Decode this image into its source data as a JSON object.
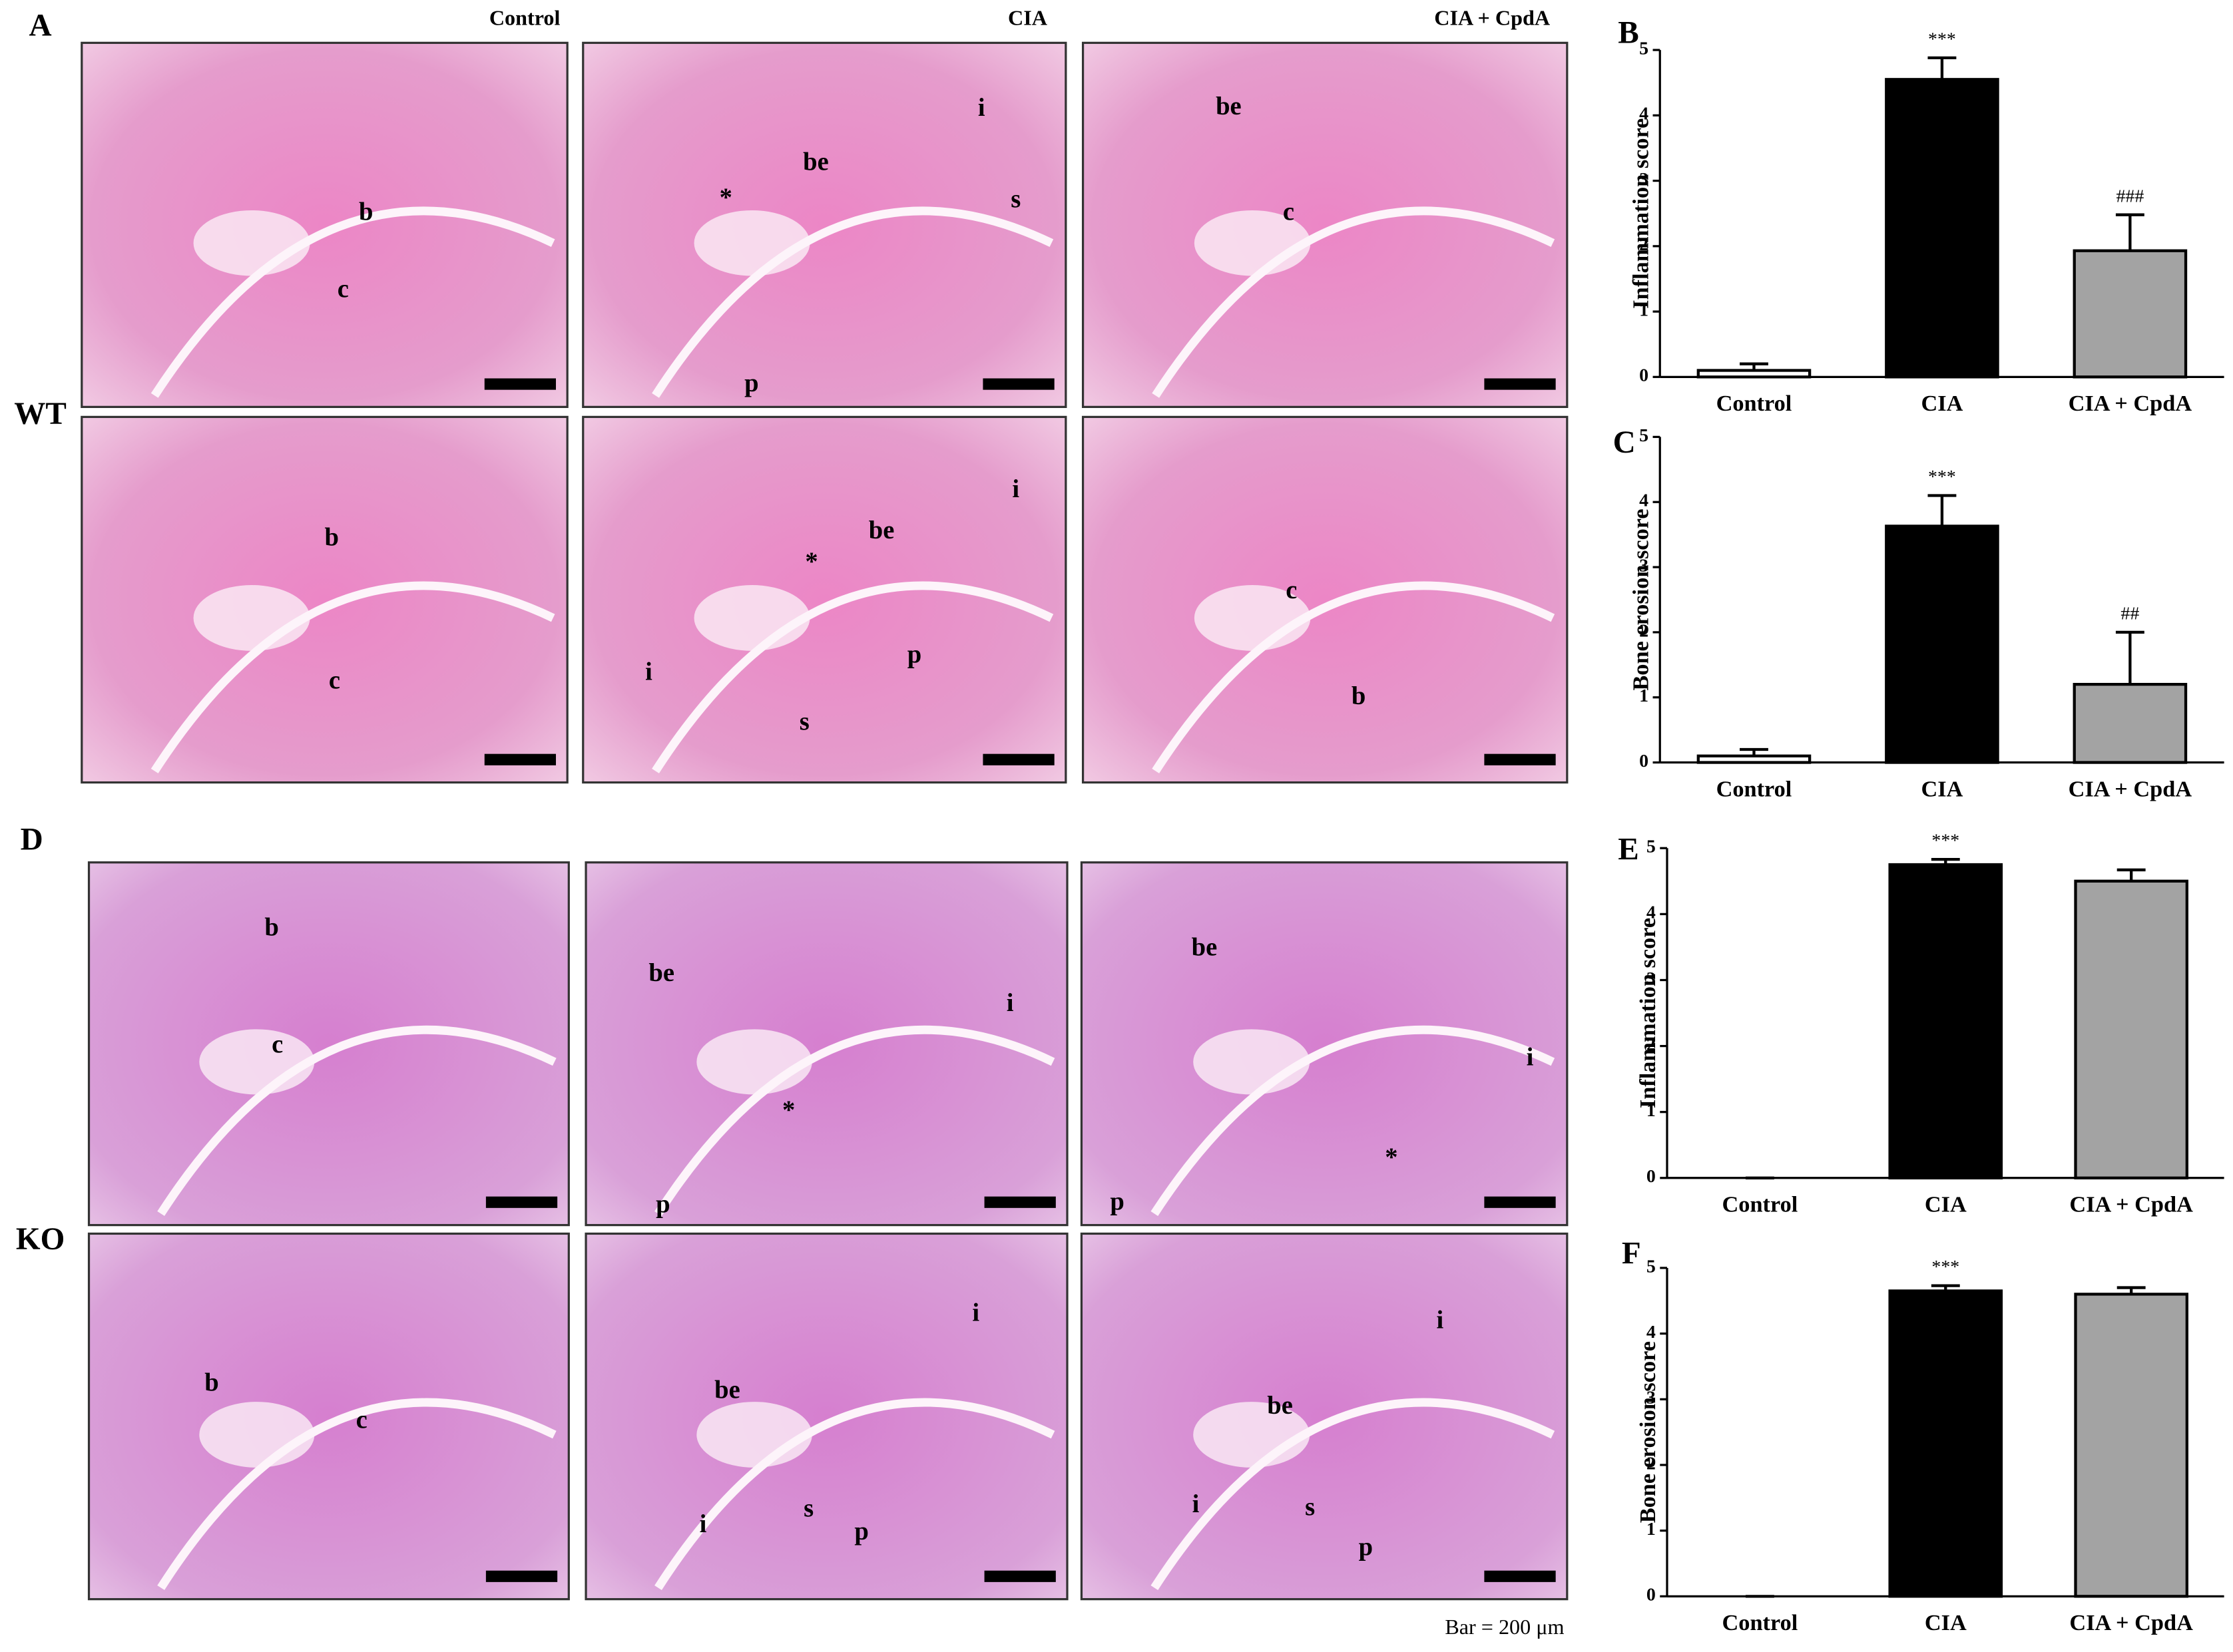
{
  "figure": {
    "panel_letters": {
      "a": "A",
      "d": "D"
    },
    "column_headers": [
      "Control",
      "CIA",
      "CIA + CpdA"
    ],
    "row_labels": {
      "wt": "WT",
      "ko": "KO"
    },
    "scale_bar_note": "Bar = 200 μm",
    "images": [
      {
        "labels": [
          "b",
          "c"
        ]
      },
      {
        "labels": [
          "be",
          "*",
          "i",
          "s",
          "p"
        ]
      },
      {
        "labels": [
          "be",
          "c"
        ]
      },
      {
        "labels": [
          "b",
          "c"
        ]
      },
      {
        "labels": [
          "be",
          "*",
          "i",
          "i",
          "p",
          "s"
        ]
      },
      {
        "labels": [
          "c",
          "b"
        ]
      },
      {
        "labels": [
          "b",
          "c"
        ]
      },
      {
        "labels": [
          "be",
          "i",
          "*",
          "p"
        ]
      },
      {
        "labels": [
          "be",
          "i",
          "*",
          "p"
        ]
      },
      {
        "labels": [
          "b",
          "c"
        ]
      },
      {
        "labels": [
          "be",
          "i",
          "i",
          "s",
          "p"
        ]
      },
      {
        "labels": [
          "be",
          "i",
          "i",
          "s",
          "p"
        ]
      }
    ]
  },
  "chart_data": [
    {
      "type": "bar",
      "panel": "B",
      "ylabel": "Inflammation score",
      "categories": [
        "Control",
        "CIA",
        "CIA + CpdA"
      ],
      "values": [
        0.1,
        4.55,
        1.93
      ],
      "errors": [
        0.1,
        0.33,
        0.55
      ],
      "significance": [
        null,
        "***",
        "###"
      ],
      "colors": [
        "#ffffff",
        "#000000",
        "#a3a3a3"
      ],
      "ylim": [
        0,
        5
      ],
      "yticks": [
        0,
        1,
        2,
        3,
        4,
        5
      ]
    },
    {
      "type": "bar",
      "panel": "C",
      "ylabel": "Bone erosion score",
      "categories": [
        "Control",
        "CIA",
        "CIA + CpdA"
      ],
      "values": [
        0.1,
        3.63,
        1.2
      ],
      "errors": [
        0.1,
        0.47,
        0.8
      ],
      "significance": [
        null,
        "***",
        "##"
      ],
      "colors": [
        "#ffffff",
        "#000000",
        "#a3a3a3"
      ],
      "ylim": [
        0,
        5
      ],
      "yticks": [
        0,
        1,
        2,
        3,
        4,
        5
      ]
    },
    {
      "type": "bar",
      "panel": "E",
      "ylabel": "Inflammation score",
      "categories": [
        "Control",
        "CIA",
        "CIA + CpdA"
      ],
      "values": [
        0,
        4.75,
        4.5
      ],
      "errors": [
        0,
        0.08,
        0.17
      ],
      "significance": [
        null,
        "***",
        null
      ],
      "colors": [
        "#ffffff",
        "#000000",
        "#a3a3a3"
      ],
      "ylim": [
        0,
        5
      ],
      "yticks": [
        0,
        1,
        2,
        3,
        4,
        5
      ]
    },
    {
      "type": "bar",
      "panel": "F",
      "ylabel": "Bone erosion score",
      "categories": [
        "Control",
        "CIA",
        "CIA + CpdA"
      ],
      "values": [
        0,
        4.65,
        4.6
      ],
      "errors": [
        0,
        0.08,
        0.1
      ],
      "significance": [
        null,
        "***",
        null
      ],
      "colors": [
        "#ffffff",
        "#000000",
        "#a3a3a3"
      ],
      "ylim": [
        0,
        5
      ],
      "yticks": [
        0,
        1,
        2,
        3,
        4,
        5
      ]
    }
  ]
}
